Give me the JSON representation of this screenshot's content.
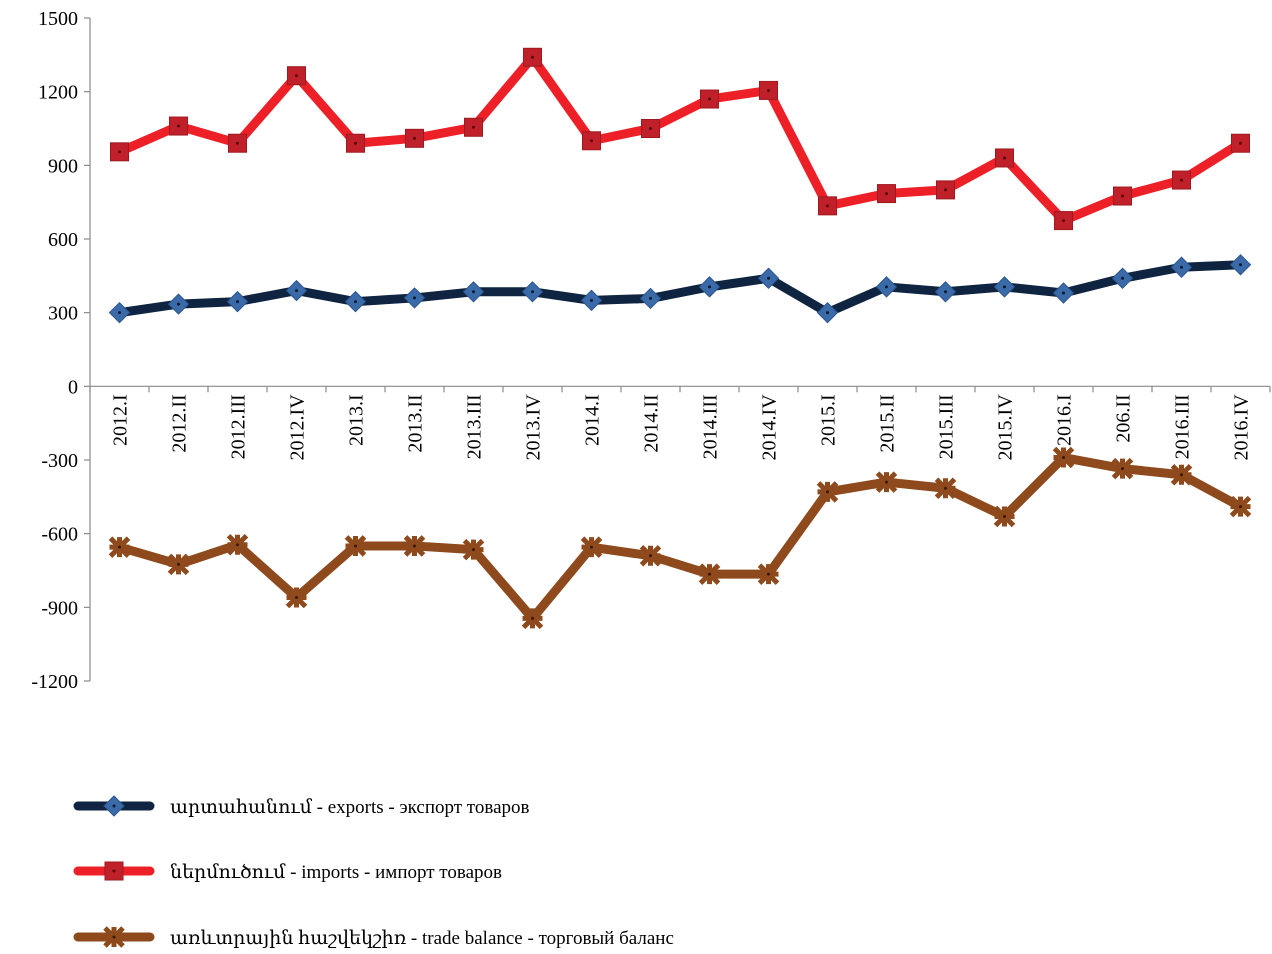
{
  "chart_data": {
    "type": "line",
    "categories": [
      "2012.I",
      "2012.II",
      "2012.III",
      "2012.IV",
      "2013.I",
      "2013.II",
      "2013.III",
      "2013.IV",
      "2014.I",
      "2014.II",
      "2014.III",
      "2014.IV",
      "2015.I",
      "2015.II",
      "2015.III",
      "2015.IV",
      "2016.I",
      "206.II",
      "2016.III",
      "2016.IV"
    ],
    "ylim": [
      -1200,
      1500
    ],
    "yticks": [
      1500,
      1200,
      900,
      600,
      300,
      0,
      -300,
      -600,
      -900,
      -1200
    ],
    "ytick_labels": [
      "1500",
      "1200",
      "900",
      "600",
      "300",
      "0",
      "-300",
      "-600",
      "-900",
      "-1200"
    ],
    "xlabel": "",
    "ylabel": "",
    "title": "",
    "grid": false,
    "legend_position": "bottom-left",
    "series": [
      {
        "name": "արտահանում - exports - экспорт товаров",
        "color": "#0f2440",
        "marker": "diamond",
        "marker_color": "#3b6aa8",
        "values": [
          300,
          335,
          345,
          390,
          345,
          360,
          385,
          385,
          350,
          358,
          405,
          440,
          300,
          405,
          385,
          405,
          380,
          440,
          485,
          495
        ]
      },
      {
        "name": "ներմուծում - imports - импорт товаров",
        "color": "#ed2027",
        "marker": "square",
        "marker_color": "#c0202a",
        "values": [
          955,
          1060,
          990,
          1265,
          990,
          1010,
          1055,
          1340,
          1000,
          1050,
          1170,
          1205,
          735,
          785,
          800,
          930,
          675,
          775,
          840,
          990
        ]
      },
      {
        "name": "առևտրային հաշվեկշիռ - trade balance - торговый баланс",
        "color": "#8e4a1c",
        "marker": "star",
        "marker_color": "#8e4a1c",
        "values": [
          -655,
          -725,
          -645,
          -860,
          -650,
          -650,
          -665,
          -945,
          -655,
          -690,
          -765,
          -765,
          -430,
          -390,
          -415,
          -530,
          -290,
          -335,
          -360,
          -490
        ]
      }
    ]
  }
}
